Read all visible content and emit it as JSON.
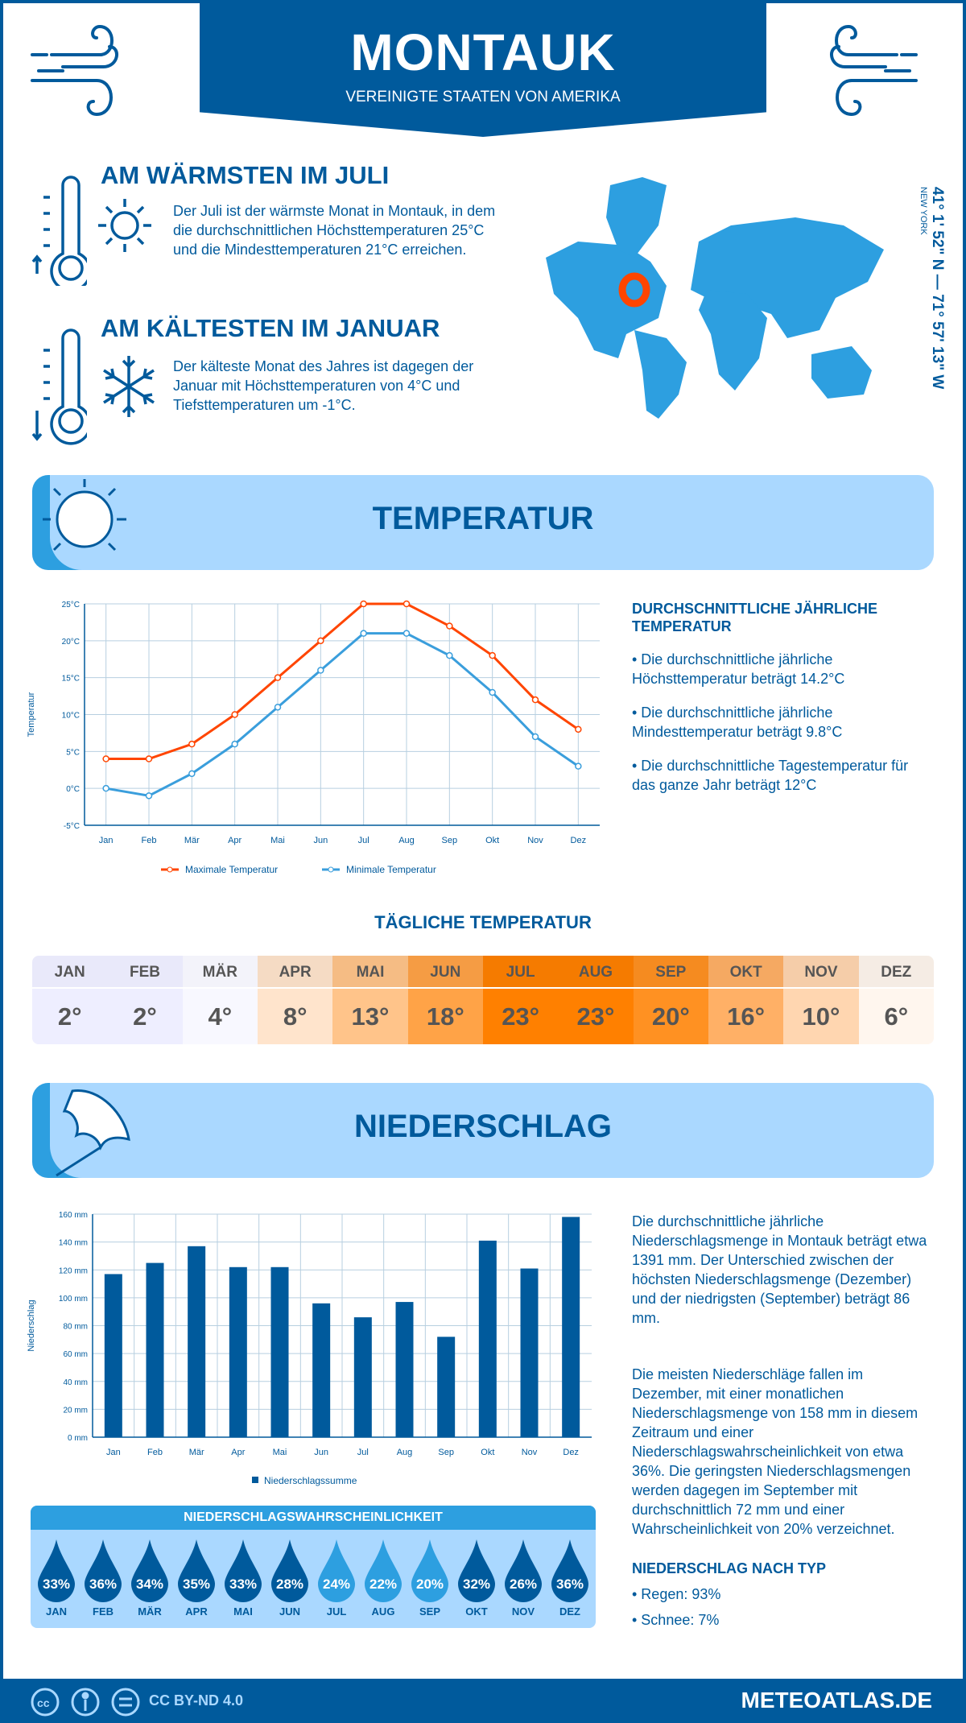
{
  "header": {
    "title": "MONTAUK",
    "subtitle": "VEREINIGTE STAATEN VON AMERIKA"
  },
  "warmest": {
    "title": "AM WÄRMSTEN IM JULI",
    "text": "Der Juli ist der wärmste Monat in Montauk, in dem die durchschnittlichen Höchsttemperaturen 25°C und die Mindesttemperaturen 21°C erreichen."
  },
  "coldest": {
    "title": "AM KÄLTESTEN IM JANUAR",
    "text": "Der kälteste Monat des Jahres ist dagegen der Januar mit Höchsttemperaturen von 4°C und Tiefsttemperaturen um -1°C."
  },
  "location": {
    "coords": "41° 1' 52\" N — 71° 57' 13\" W",
    "region": "NEW YORK",
    "marker_color": "#ff4500"
  },
  "temperature_section": {
    "title": "TEMPERATUR",
    "side_title": "DURCHSCHNITTLICHE JÄHRLICHE TEMPERATUR",
    "bullets": [
      "• Die durchschnittliche jährliche Höchsttemperatur beträgt 14.2°C",
      "• Die durchschnittliche jährliche Mindesttemperatur beträgt 9.8°C",
      "• Die durchschnittliche Tagestemperatur für das ganze Jahr beträgt 12°C"
    ]
  },
  "daily": {
    "title": "TÄGLICHE TEMPERATUR",
    "months": [
      {
        "m": "JAN",
        "v": "2°",
        "c": "#eeeeff"
      },
      {
        "m": "FEB",
        "v": "2°",
        "c": "#eeeeff"
      },
      {
        "m": "MÄR",
        "v": "4°",
        "c": "#f8f8ff"
      },
      {
        "m": "APR",
        "v": "8°",
        "c": "#ffe4cc"
      },
      {
        "m": "MAI",
        "v": "13°",
        "c": "#ffc48a"
      },
      {
        "m": "JUN",
        "v": "18°",
        "c": "#ffa347"
      },
      {
        "m": "JUL",
        "v": "23°",
        "c": "#ff8000"
      },
      {
        "m": "AUG",
        "v": "23°",
        "c": "#ff8000"
      },
      {
        "m": "SEP",
        "v": "20°",
        "c": "#ff9122"
      },
      {
        "m": "OKT",
        "v": "16°",
        "c": "#ffb066"
      },
      {
        "m": "NOV",
        "v": "10°",
        "c": "#ffd6b0"
      },
      {
        "m": "DEZ",
        "v": "6°",
        "c": "#fff6ee"
      }
    ]
  },
  "precip_section": {
    "title": "NIEDERSCHLAG",
    "para1": "Die durchschnittliche jährliche Niederschlagsmenge in Montauk beträgt etwa 1391 mm. Der Unterschied zwischen der höchsten Niederschlagsmenge (Dezember) und der niedrigsten (September) beträgt 86 mm.",
    "para2": "Die meisten Niederschläge fallen im Dezember, mit einer monatlichen Niederschlagsmenge von 158 mm in diesem Zeitraum und einer Niederschlagswahrscheinlichkeit von etwa 36%. Die geringsten Niederschlagsmengen werden dagegen im September mit durchschnittlich 72 mm und einer Wahrscheinlichkeit von 20% verzeichnet.",
    "type_title": "NIEDERSCHLAG NACH TYP",
    "types": [
      "• Regen: 93%",
      "• Schnee: 7%"
    ]
  },
  "probability": {
    "title": "NIEDERSCHLAGSWAHRSCHEINLICHKEIT",
    "months": [
      "JAN",
      "FEB",
      "MÄR",
      "APR",
      "MAI",
      "JUN",
      "JUL",
      "AUG",
      "SEP",
      "OKT",
      "NOV",
      "DEZ"
    ],
    "values": [
      "33%",
      "36%",
      "34%",
      "35%",
      "33%",
      "28%",
      "24%",
      "22%",
      "20%",
      "32%",
      "26%",
      "36%"
    ],
    "dark_color": "#005a9c",
    "light_color": "#2d9fe0"
  },
  "footer": {
    "license": "CC BY-ND 4.0",
    "brand": "METEOATLAS.DE"
  },
  "chart_data": [
    {
      "type": "line",
      "categories": [
        "Jan",
        "Feb",
        "Mär",
        "Apr",
        "Mai",
        "Jun",
        "Jul",
        "Aug",
        "Sep",
        "Okt",
        "Nov",
        "Dez"
      ],
      "ylabel": "Temperatur",
      "ylim": [
        -5,
        25
      ],
      "yticks": [
        "-5°C",
        "0°C",
        "5°C",
        "10°C",
        "15°C",
        "20°C",
        "25°C"
      ],
      "grid": true,
      "legend": "bottom",
      "series": [
        {
          "name": "Maximale Temperatur",
          "color": "#ff4500",
          "values": [
            4,
            4,
            6,
            10,
            15,
            20,
            25,
            25,
            22,
            18,
            12,
            8
          ]
        },
        {
          "name": "Minimale Temperatur",
          "color": "#3a9edc",
          "values": [
            0,
            -1,
            2,
            6,
            11,
            16,
            21,
            21,
            18,
            13,
            7,
            3
          ]
        }
      ]
    },
    {
      "type": "bar",
      "categories": [
        "Jan",
        "Feb",
        "Mär",
        "Apr",
        "Mai",
        "Jun",
        "Jul",
        "Aug",
        "Sep",
        "Okt",
        "Nov",
        "Dez"
      ],
      "ylabel": "Niederschlag",
      "ylim": [
        0,
        160
      ],
      "yticks": [
        "0 mm",
        "20 mm",
        "40 mm",
        "60 mm",
        "80 mm",
        "100 mm",
        "120 mm",
        "140 mm",
        "160 mm"
      ],
      "grid": true,
      "legend": "bottom",
      "series": [
        {
          "name": "Niederschlagssumme",
          "color": "#005a9c",
          "values": [
            117,
            125,
            137,
            122,
            122,
            96,
            86,
            97,
            72,
            141,
            121,
            158
          ]
        }
      ]
    }
  ]
}
